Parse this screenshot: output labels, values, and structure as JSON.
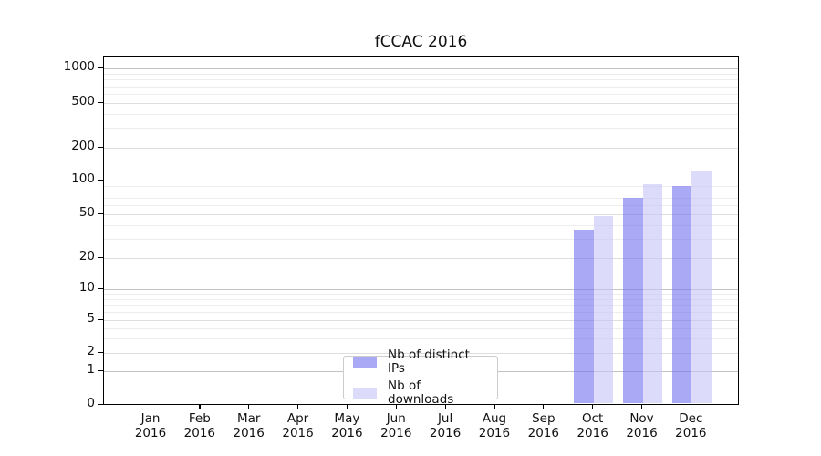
{
  "chart_data": {
    "type": "bar",
    "title": "fCCAC 2016",
    "xlabel": "",
    "ylabel": "",
    "yscale": "symlog",
    "grid": "horizontal",
    "legend_position": "lower-center-inside",
    "x_year_label": "2016",
    "categories": [
      "Jan",
      "Feb",
      "Mar",
      "Apr",
      "May",
      "Jun",
      "Jul",
      "Aug",
      "Sep",
      "Oct",
      "Nov",
      "Dec"
    ],
    "y_tick_labels": [
      "0",
      "1",
      "2",
      "5",
      "10",
      "20",
      "50",
      "100",
      "200",
      "500",
      "1000"
    ],
    "y_tick_values": [
      0,
      1,
      2,
      5,
      10,
      20,
      50,
      100,
      200,
      500,
      1000
    ],
    "y_minor_values": [
      3,
      4,
      6,
      7,
      8,
      9,
      30,
      40,
      60,
      70,
      80,
      90,
      300,
      400,
      600,
      700,
      800,
      900
    ],
    "ylim": [
      0,
      1200
    ],
    "series": [
      {
        "name": "Nb of distinct IPs",
        "color": "rgba(112,112,238,0.6)",
        "values": [
          null,
          null,
          null,
          null,
          null,
          null,
          null,
          null,
          null,
          36,
          70,
          90
        ]
      },
      {
        "name": "Nb of downloads",
        "color": "rgba(197,197,247,0.6)",
        "values": [
          null,
          null,
          null,
          null,
          null,
          null,
          null,
          null,
          null,
          48,
          92,
          124
        ]
      }
    ]
  },
  "colors": {
    "decade_grid": "#c3c3c3",
    "major_grid": "#dedede",
    "minor_grid": "#ededed",
    "axis": "#000000",
    "background": "#ffffff"
  }
}
